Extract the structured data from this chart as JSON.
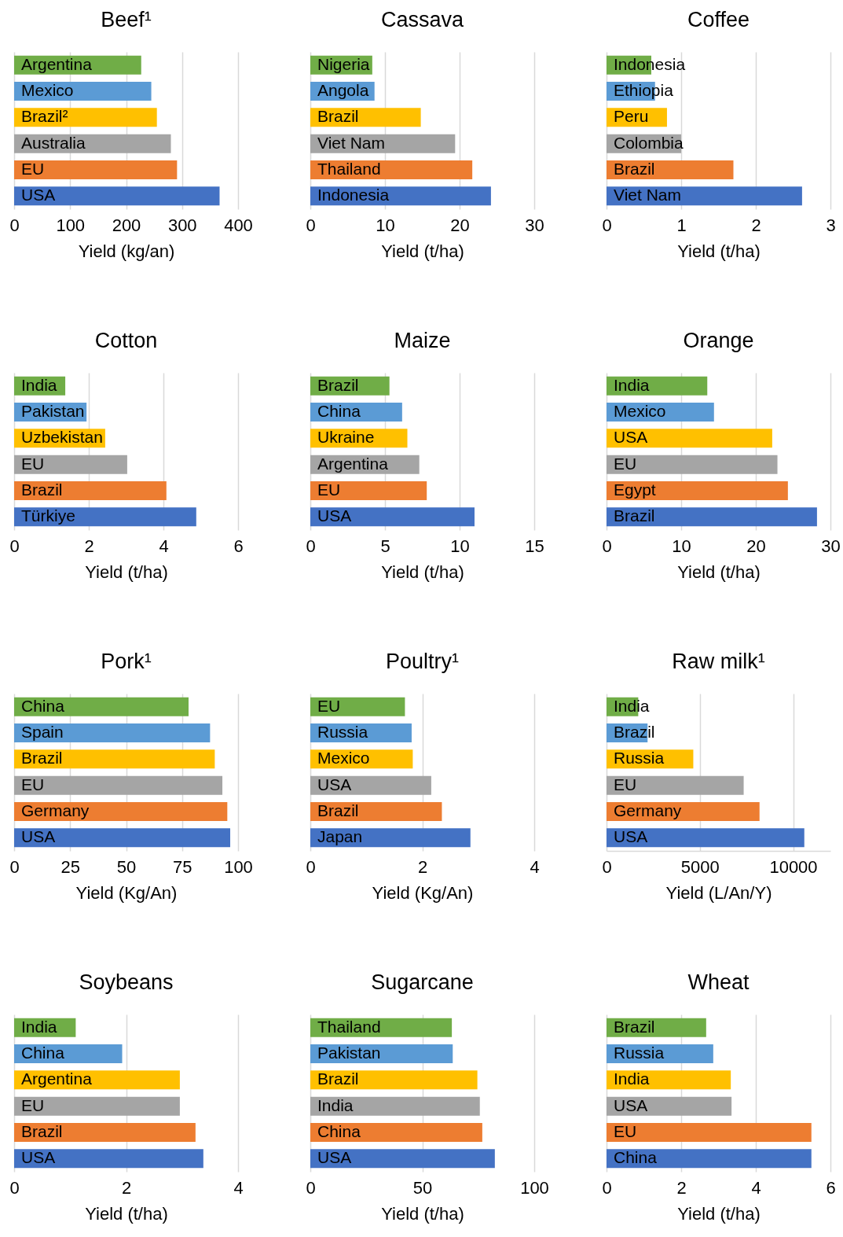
{
  "chart_data": [
    {
      "type": "bar",
      "orientation": "horizontal",
      "title": "Beef¹",
      "xlabel": "Yield (kg/an)",
      "categories": [
        "Argentina",
        "Mexico",
        "Brazil²",
        "Australia",
        "EU",
        "USA"
      ],
      "values": [
        227,
        245,
        255,
        280,
        291,
        367
      ],
      "colors": [
        "#70ad47",
        "#5b9bd5",
        "#ffc000",
        "#a5a5a5",
        "#ed7d31",
        "#4472c4"
      ],
      "xlim": [
        0,
        400
      ],
      "xticks": [
        0,
        100,
        200,
        300,
        400
      ],
      "grid": "x"
    },
    {
      "type": "bar",
      "orientation": "horizontal",
      "title": "Cassava",
      "xlabel": "Yield (t/ha)",
      "categories": [
        "Nigeria",
        "Angola",
        "Brazil",
        "Viet Nam",
        "Thailand",
        "Indonesia"
      ],
      "values": [
        8.3,
        8.6,
        14.8,
        19.4,
        21.7,
        24.2
      ],
      "colors": [
        "#70ad47",
        "#5b9bd5",
        "#ffc000",
        "#a5a5a5",
        "#ed7d31",
        "#4472c4"
      ],
      "xlim": [
        0,
        30
      ],
      "xticks": [
        0,
        10,
        20,
        30
      ],
      "grid": "x"
    },
    {
      "type": "bar",
      "orientation": "horizontal",
      "title": "Coffee",
      "xlabel": "Yield (t/ha)",
      "categories": [
        "Indonesia",
        "Ethiopia",
        "Peru",
        "Colombia",
        "Brazil",
        "Viet Nam"
      ],
      "values": [
        0.6,
        0.65,
        0.81,
        1.0,
        1.7,
        2.62
      ],
      "colors": [
        "#70ad47",
        "#5b9bd5",
        "#ffc000",
        "#a5a5a5",
        "#ed7d31",
        "#4472c4"
      ],
      "xlim": [
        0,
        3
      ],
      "xticks": [
        0,
        1,
        2,
        3
      ],
      "grid": "x"
    },
    {
      "type": "bar",
      "orientation": "horizontal",
      "title": "Cotton",
      "xlabel": "Yield (t/ha)",
      "categories": [
        "India",
        "Pakistan",
        "Uzbekistan",
        "EU",
        "Brazil",
        "Türkiye"
      ],
      "values": [
        1.37,
        1.94,
        2.44,
        3.03,
        4.08,
        4.88
      ],
      "colors": [
        "#70ad47",
        "#5b9bd5",
        "#ffc000",
        "#a5a5a5",
        "#ed7d31",
        "#4472c4"
      ],
      "xlim": [
        0,
        6
      ],
      "xticks": [
        0,
        2,
        4,
        6
      ],
      "grid": "x"
    },
    {
      "type": "bar",
      "orientation": "horizontal",
      "title": "Maize",
      "xlabel": "Yield (t/ha)",
      "categories": [
        "Brazil",
        "China",
        "Ukraine",
        "Argentina",
        "EU",
        "USA"
      ],
      "values": [
        5.3,
        6.15,
        6.5,
        7.3,
        7.8,
        11.0
      ],
      "colors": [
        "#70ad47",
        "#5b9bd5",
        "#ffc000",
        "#a5a5a5",
        "#ed7d31",
        "#4472c4"
      ],
      "xlim": [
        0,
        15
      ],
      "xticks": [
        0,
        5,
        10,
        15
      ],
      "grid": "x"
    },
    {
      "type": "bar",
      "orientation": "horizontal",
      "title": "Orange",
      "xlabel": "Yield (t/ha)",
      "categories": [
        "India",
        "Mexico",
        "USA",
        "EU",
        "Egypt",
        "Brazil"
      ],
      "values": [
        13.5,
        14.4,
        22.2,
        22.9,
        24.3,
        28.2
      ],
      "colors": [
        "#70ad47",
        "#5b9bd5",
        "#ffc000",
        "#a5a5a5",
        "#ed7d31",
        "#4472c4"
      ],
      "xlim": [
        0,
        30
      ],
      "xticks": [
        0,
        10,
        20,
        30
      ],
      "grid": "x"
    },
    {
      "type": "bar",
      "orientation": "horizontal",
      "title": "Pork¹",
      "xlabel": "Yield (Kg/An)",
      "categories": [
        "China",
        "Spain",
        "Brazil",
        "EU",
        "Germany",
        "USA"
      ],
      "values": [
        77.9,
        87.5,
        89.6,
        93,
        95.2,
        96.5
      ],
      "colors": [
        "#70ad47",
        "#5b9bd5",
        "#ffc000",
        "#a5a5a5",
        "#ed7d31",
        "#4472c4"
      ],
      "xlim": [
        0,
        100
      ],
      "xticks": [
        0,
        25,
        50,
        75,
        100
      ],
      "grid": "x"
    },
    {
      "type": "bar",
      "orientation": "horizontal",
      "title": "Poultry¹",
      "xlabel": "Yield (Kg/An)",
      "categories": [
        "EU",
        "Russia",
        "Mexico",
        "USA",
        "Brazil",
        "Japan"
      ],
      "values": [
        1.69,
        1.81,
        1.83,
        2.16,
        2.35,
        2.86
      ],
      "colors": [
        "#70ad47",
        "#5b9bd5",
        "#ffc000",
        "#a5a5a5",
        "#ed7d31",
        "#4472c4"
      ],
      "xlim": [
        0,
        4
      ],
      "xticks": [
        0,
        2,
        4
      ],
      "grid": "x"
    },
    {
      "type": "bar",
      "orientation": "horizontal",
      "title": "Raw milk¹",
      "xlabel": "Yield (L/An/Y)",
      "categories": [
        "India",
        "Brazil",
        "Russia",
        "EU",
        "Germany",
        "USA"
      ],
      "values": [
        1700,
        2200,
        4650,
        7350,
        8200,
        10600
      ],
      "colors": [
        "#70ad47",
        "#5b9bd5",
        "#ffc000",
        "#a5a5a5",
        "#ed7d31",
        "#4472c4"
      ],
      "xlim": [
        0,
        12000
      ],
      "xticks": [
        0,
        5000,
        10000
      ],
      "grid": "x"
    },
    {
      "type": "bar",
      "orientation": "horizontal",
      "title": "Soybeans",
      "xlabel": "Yield (t/ha)",
      "categories": [
        "India",
        "China",
        "Argentina",
        "EU",
        "Brazil",
        "USA"
      ],
      "values": [
        1.1,
        1.93,
        2.96,
        2.96,
        3.24,
        3.38
      ],
      "colors": [
        "#70ad47",
        "#5b9bd5",
        "#ffc000",
        "#a5a5a5",
        "#ed7d31",
        "#4472c4"
      ],
      "xlim": [
        0,
        4
      ],
      "xticks": [
        0,
        2,
        4
      ],
      "grid": "x"
    },
    {
      "type": "bar",
      "orientation": "horizontal",
      "title": "Sugarcane",
      "xlabel": "Yield (t/ha)",
      "categories": [
        "Thailand",
        "Pakistan",
        "Brazil",
        "India",
        "China",
        "USA"
      ],
      "values": [
        63.2,
        63.6,
        74.6,
        75.7,
        76.8,
        82.4
      ],
      "colors": [
        "#70ad47",
        "#5b9bd5",
        "#ffc000",
        "#a5a5a5",
        "#ed7d31",
        "#4472c4"
      ],
      "xlim": [
        0,
        100
      ],
      "xticks": [
        0,
        50,
        100
      ],
      "grid": "x"
    },
    {
      "type": "bar",
      "orientation": "horizontal",
      "title": "Wheat",
      "xlabel": "Yield (t/ha)",
      "categories": [
        "Brazil",
        "Russia",
        "India",
        "USA",
        "EU",
        "China"
      ],
      "values": [
        2.67,
        2.86,
        3.33,
        3.35,
        5.49,
        5.49
      ],
      "colors": [
        "#70ad47",
        "#5b9bd5",
        "#ffc000",
        "#a5a5a5",
        "#ed7d31",
        "#4472c4"
      ],
      "xlim": [
        0,
        6
      ],
      "xticks": [
        0,
        2,
        4,
        6
      ],
      "grid": "x"
    }
  ]
}
